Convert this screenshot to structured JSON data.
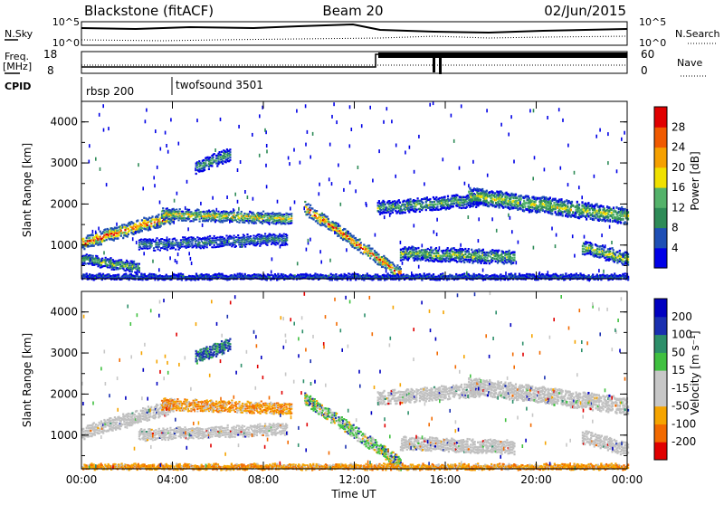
{
  "header": {
    "station": "Blackstone (fitACF)",
    "beam": "Beam 20",
    "date": "02/Jun/2015"
  },
  "summary": {
    "nsky_label": "N.Sky",
    "nsky_ticks": [
      "10^5",
      "10^0"
    ],
    "nsearch_label": "N.Search",
    "freq_label": "Freq.",
    "freq_unit": "[MHz]",
    "freq_ticks": [
      "18",
      "8"
    ],
    "nave_label": "Nave",
    "nave_ticks": [
      "60",
      "0"
    ],
    "cpid_label": "CPID",
    "cpid_segments": [
      {
        "label": "rbsp 200",
        "start_hour": 0,
        "end_hour": 4
      },
      {
        "label": "twofsound 3501",
        "start_hour": 4,
        "end_hour": 24
      }
    ]
  },
  "colors": {
    "power_scale": [
      "#0000e6",
      "#1e4fb5",
      "#2e8b57",
      "#54b26a",
      "#f0e000",
      "#f5a000",
      "#f05a00",
      "#e00000"
    ],
    "velocity_scale": [
      "#e00000",
      "#f26a00",
      "#f5a400",
      "#c7c7c7",
      "#c7c7c7",
      "#40c040",
      "#2d8f6a",
      "#1a30b0",
      "#0000c0"
    ],
    "ground_scatter": "#c0c0c0"
  },
  "chart_data": [
    {
      "type": "heatmap",
      "title": "Power",
      "xlabel": "Time UT",
      "ylabel": "Slant Range [km]",
      "xlim_hours": [
        0,
        24
      ],
      "ylim": [
        180,
        4500
      ],
      "x_ticks": [
        "00:00",
        "04:00",
        "08:00",
        "12:00",
        "16:00",
        "20:00",
        "00:00"
      ],
      "y_ticks": [
        1000,
        2000,
        3000,
        4000
      ],
      "colorbar": {
        "label": "Power [dB]",
        "ticks": [
          4,
          8,
          12,
          16,
          20,
          24,
          28
        ],
        "range": [
          0,
          30
        ]
      },
      "features": [
        {
          "start_hour": 0.0,
          "end_hour": 4.0,
          "range_start": 1050,
          "range_end": 1700,
          "thickness": 260,
          "peak": 26
        },
        {
          "start_hour": 3.5,
          "end_hour": 9.2,
          "range_start": 1750,
          "range_end": 1650,
          "thickness": 220,
          "peak": 18
        },
        {
          "start_hour": 0.0,
          "end_hour": 2.5,
          "range_start": 650,
          "range_end": 450,
          "thickness": 200,
          "peak": 14
        },
        {
          "start_hour": 2.5,
          "end_hour": 9.0,
          "range_start": 1000,
          "range_end": 1150,
          "thickness": 220,
          "peak": 10
        },
        {
          "start_hour": 5.0,
          "end_hour": 6.5,
          "range_start": 2900,
          "range_end": 3200,
          "thickness": 250,
          "peak": 12
        },
        {
          "start_hour": 9.8,
          "end_hour": 14.0,
          "range_start": 1900,
          "range_end": 300,
          "thickness": 240,
          "peak": 26
        },
        {
          "start_hour": 13.0,
          "end_hour": 17.5,
          "range_start": 1900,
          "range_end": 2100,
          "thickness": 260,
          "peak": 13
        },
        {
          "start_hour": 17.0,
          "end_hour": 24.0,
          "range_start": 2200,
          "range_end": 1700,
          "thickness": 320,
          "peak": 16
        },
        {
          "start_hour": 14.0,
          "end_hour": 19.0,
          "range_start": 800,
          "range_end": 700,
          "thickness": 260,
          "peak": 14
        },
        {
          "start_hour": 22.0,
          "end_hour": 24.0,
          "range_start": 950,
          "range_end": 650,
          "thickness": 260,
          "peak": 16
        },
        {
          "start_hour": 0.0,
          "end_hour": 24.0,
          "range_start": 240,
          "range_end": 240,
          "thickness": 80,
          "peak": 8
        }
      ]
    },
    {
      "type": "heatmap",
      "title": "Velocity",
      "xlabel": "Time UT",
      "ylabel": "Slant Range [km]",
      "xlim_hours": [
        0,
        24
      ],
      "ylim": [
        180,
        4500
      ],
      "x_ticks": [
        "00:00",
        "04:00",
        "08:00",
        "12:00",
        "16:00",
        "20:00",
        "00:00"
      ],
      "y_ticks": [
        1000,
        2000,
        3000,
        4000
      ],
      "colorbar": {
        "label": "Velocity [m s⁻¹]",
        "ticks": [
          200,
          100,
          50,
          15,
          -15,
          -50,
          -100,
          -200
        ],
        "range": [
          -250,
          250
        ]
      },
      "features": [
        {
          "start_hour": 0.0,
          "end_hour": 4.0,
          "range_start": 1050,
          "range_end": 1700,
          "thickness": 260,
          "class": "ground"
        },
        {
          "start_hour": 3.5,
          "end_hour": 9.2,
          "range_start": 1750,
          "range_end": 1650,
          "thickness": 220,
          "class": "negative"
        },
        {
          "start_hour": 2.5,
          "end_hour": 9.0,
          "range_start": 1000,
          "range_end": 1150,
          "thickness": 220,
          "class": "ground"
        },
        {
          "start_hour": 5.0,
          "end_hour": 6.5,
          "range_start": 2900,
          "range_end": 3200,
          "thickness": 250,
          "class": "positive"
        },
        {
          "start_hour": 9.8,
          "end_hour": 14.0,
          "range_start": 1900,
          "range_end": 300,
          "thickness": 240,
          "class": "mixed"
        },
        {
          "start_hour": 13.0,
          "end_hour": 17.5,
          "range_start": 1900,
          "range_end": 2100,
          "thickness": 260,
          "class": "ground"
        },
        {
          "start_hour": 17.0,
          "end_hour": 24.0,
          "range_start": 2200,
          "range_end": 1700,
          "thickness": 320,
          "class": "ground"
        },
        {
          "start_hour": 14.0,
          "end_hour": 19.0,
          "range_start": 800,
          "range_end": 700,
          "thickness": 260,
          "class": "ground"
        },
        {
          "start_hour": 22.0,
          "end_hour": 24.0,
          "range_start": 950,
          "range_end": 650,
          "thickness": 260,
          "class": "ground"
        },
        {
          "start_hour": 0.0,
          "end_hour": 24.0,
          "range_start": 240,
          "range_end": 240,
          "thickness": 80,
          "class": "negative"
        }
      ]
    }
  ]
}
